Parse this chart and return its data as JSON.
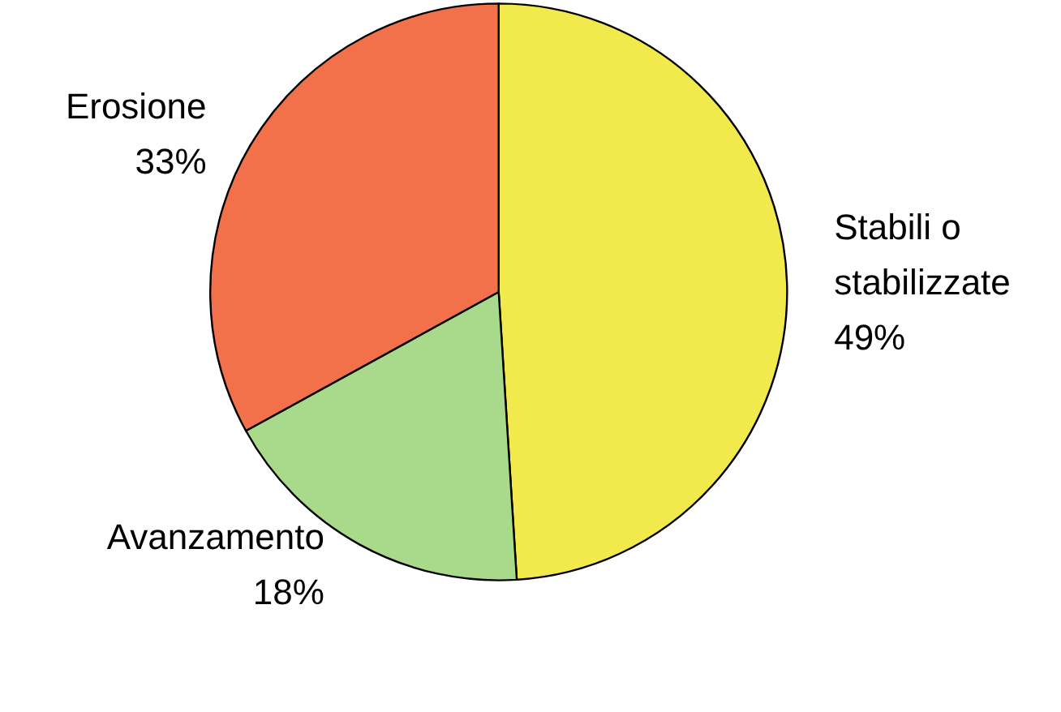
{
  "chart_data": {
    "type": "pie",
    "categories": [
      "Stabili o stabilizzate",
      "Avanzamento",
      "Erosione"
    ],
    "values": [
      49,
      18,
      33
    ],
    "colors": [
      "#f2ea4c",
      "#a9d98a",
      "#f2704a"
    ],
    "value_labels": [
      "49%",
      "18%",
      "33%"
    ]
  }
}
